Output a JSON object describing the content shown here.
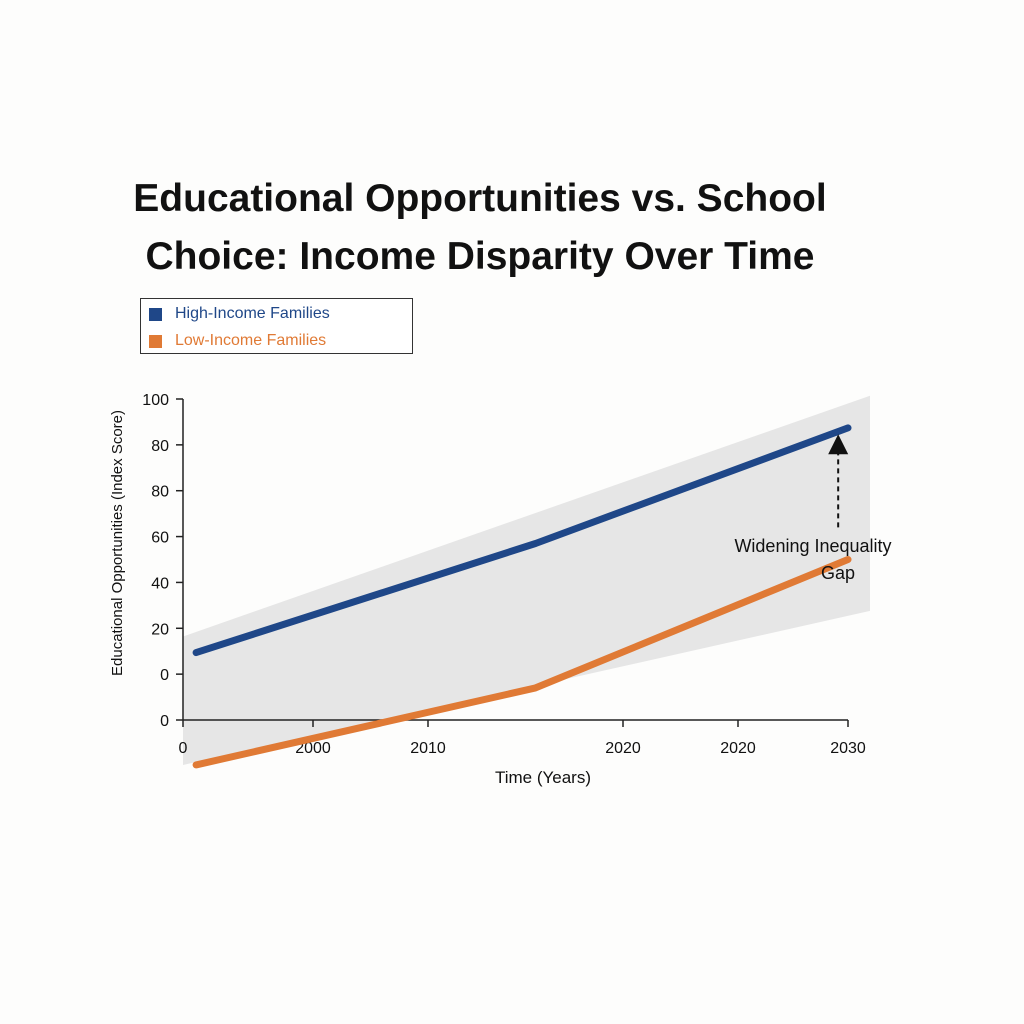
{
  "chart_data": {
    "type": "line",
    "title": [
      "Educational Opportunities vs. School",
      "Choice: Income Disparity Over Time"
    ],
    "xlabel": "Time (Years)",
    "ylabel": "Educational Opportunities (Index Score)",
    "x_tick_labels": [
      "0",
      "2000",
      "2010",
      "2020",
      "2020",
      "2030"
    ],
    "y_tick_labels": [
      "100",
      "80",
      "80",
      "60",
      "40",
      "20",
      "0",
      "0"
    ],
    "xlim": [
      0,
      2030
    ],
    "ylim": [
      0,
      100
    ],
    "grid": false,
    "legend_position": "top-left",
    "series": [
      {
        "name": "High-Income Families",
        "color": "#1f4788",
        "points": [
          [
            40,
            21
          ],
          [
            1076,
            55
          ],
          [
            2030,
            91
          ]
        ]
      },
      {
        "name": "Low-Income Families",
        "color": "#e07a35",
        "points": [
          [
            40,
            -14
          ],
          [
            1076,
            10
          ],
          [
            2030,
            50
          ]
        ]
      }
    ],
    "shaded_band": {
      "color": "#e6e6e6",
      "upper": [
        [
          0,
          26
        ],
        [
          2030,
          101
        ]
      ],
      "lower": [
        [
          0,
          -14
        ],
        [
          2030,
          34
        ]
      ]
    },
    "annotations": [
      {
        "lines": [
          "Widening Inequality",
          "Gap"
        ],
        "arrow_x": 2000,
        "arrow_y_from": 60,
        "arrow_y_to": 89
      }
    ]
  }
}
